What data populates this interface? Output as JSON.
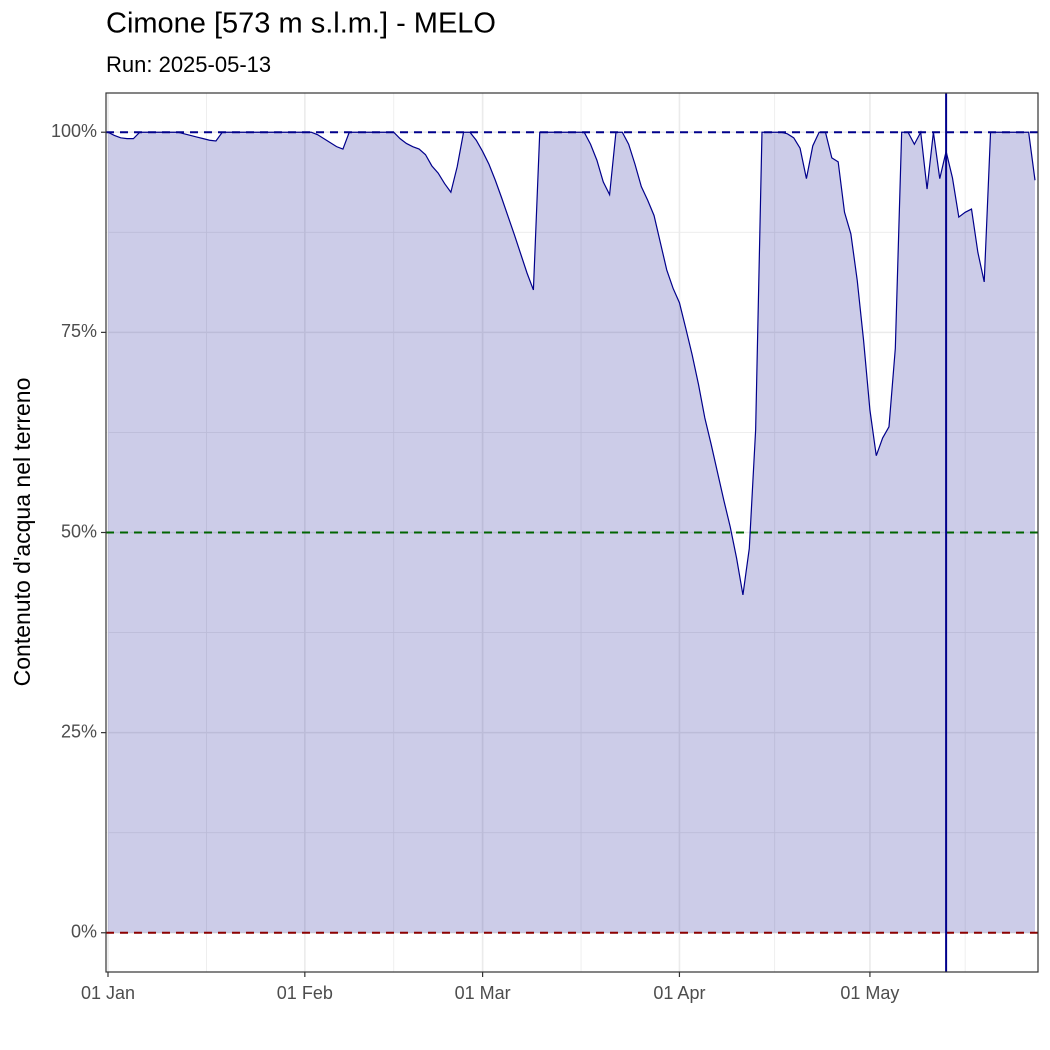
{
  "chart_data": {
    "type": "area",
    "title": "Cimone [573 m s.l.m.] - MELO",
    "subtitle": "Run: 2025-05-13",
    "y_label": "Contenuto d'acqua nel terreno",
    "x": [
      "01 Jan",
      "02 Jan",
      "03 Jan",
      "04 Jan",
      "05 Jan",
      "06 Jan",
      "07 Jan",
      "08 Jan",
      "09 Jan",
      "10 Jan",
      "11 Jan",
      "12 Jan",
      "13 Jan",
      "14 Jan",
      "15 Jan",
      "16 Jan",
      "17 Jan",
      "18 Jan",
      "19 Jan",
      "20 Jan",
      "21 Jan",
      "22 Jan",
      "23 Jan",
      "24 Jan",
      "25 Jan",
      "26 Jan",
      "27 Jan",
      "28 Jan",
      "29 Jan",
      "30 Jan",
      "31 Jan",
      "01 Feb",
      "02 Feb",
      "03 Feb",
      "04 Feb",
      "05 Feb",
      "06 Feb",
      "07 Feb",
      "08 Feb",
      "09 Feb",
      "10 Feb",
      "11 Feb",
      "12 Feb",
      "13 Feb",
      "14 Feb",
      "15 Feb",
      "16 Feb",
      "17 Feb",
      "18 Feb",
      "19 Feb",
      "20 Feb",
      "21 Feb",
      "22 Feb",
      "23 Feb",
      "24 Feb",
      "25 Feb",
      "26 Feb",
      "27 Feb",
      "28 Feb",
      "01 Mar",
      "02 Mar",
      "03 Mar",
      "04 Mar",
      "05 Mar",
      "06 Mar",
      "07 Mar",
      "08 Mar",
      "09 Mar",
      "10 Mar",
      "11 Mar",
      "12 Mar",
      "13 Mar",
      "14 Mar",
      "15 Mar",
      "16 Mar",
      "17 Mar",
      "18 Mar",
      "19 Mar",
      "20 Mar",
      "21 Mar",
      "22 Mar",
      "23 Mar",
      "24 Mar",
      "25 Mar",
      "26 Mar",
      "27 Mar",
      "28 Mar",
      "29 Mar",
      "30 Mar",
      "31 Mar",
      "01 Apr",
      "02 Apr",
      "03 Apr",
      "04 Apr",
      "05 Apr",
      "06 Apr",
      "07 Apr",
      "08 Apr",
      "09 Apr",
      "10 Apr",
      "11 Apr",
      "12 Apr",
      "13 Apr",
      "14 Apr",
      "15 Apr",
      "16 Apr",
      "17 Apr",
      "18 Apr",
      "19 Apr",
      "20 Apr",
      "21 Apr",
      "22 Apr",
      "23 Apr",
      "24 Apr",
      "25 Apr",
      "26 Apr",
      "27 Apr",
      "28 Apr",
      "29 Apr",
      "30 Apr",
      "01 May",
      "02 May",
      "03 May",
      "04 May",
      "05 May",
      "06 May",
      "07 May",
      "08 May",
      "09 May",
      "10 May",
      "11 May",
      "12 May",
      "13 May",
      "14 May",
      "15 May",
      "16 May",
      "17 May",
      "18 May",
      "19 May",
      "20 May",
      "21 May",
      "22 May",
      "23 May",
      "24 May",
      "25 May",
      "26 May",
      "27 May"
    ],
    "values": [
      100,
      99.6,
      99.3,
      99.2,
      99.2,
      100,
      100,
      100,
      100,
      100,
      100,
      100,
      99.8,
      99.6,
      99.4,
      99.2,
      99.0,
      98.9,
      100,
      100,
      100,
      100,
      100,
      100,
      100,
      100,
      100,
      100,
      100,
      100,
      100,
      100,
      100,
      99.7,
      99.2,
      98.7,
      98.2,
      97.9,
      100,
      100,
      100,
      100,
      100,
      100,
      100,
      100,
      99.2,
      98.6,
      98.2,
      97.9,
      97.2,
      95.8,
      94.9,
      93.6,
      92.5,
      95.7,
      100,
      100,
      99.0,
      97.6,
      96.0,
      94.0,
      91.8,
      89.5,
      87.2,
      84.8,
      82.4,
      80.3,
      100,
      100,
      100,
      100,
      100,
      100,
      100,
      100,
      98.5,
      96.5,
      93.8,
      92.2,
      100,
      100,
      98.5,
      96.0,
      93.2,
      91.5,
      89.6,
      86.2,
      82.8,
      80.5,
      78.7,
      75.5,
      72.2,
      68.5,
      64.3,
      61.0,
      57.5,
      54.0,
      50.7,
      46.8,
      42.2,
      48.0,
      62.8,
      100,
      100,
      100,
      100,
      99.8,
      99.3,
      98.0,
      94.2,
      98.3,
      100,
      100,
      96.8,
      96.3,
      90.0,
      87.3,
      81.5,
      74.0,
      65.3,
      59.6,
      61.8,
      63.2,
      73.0,
      100,
      100,
      98.5,
      100,
      92.9,
      100,
      94.2,
      97.6,
      94.3,
      89.4,
      90.0,
      90.4,
      85.0,
      81.3,
      100,
      100,
      100,
      100,
      100,
      100,
      100,
      94.0
    ],
    "color": "#00008b",
    "ylim": [
      -4.9,
      104.9
    ],
    "yticks": [
      {
        "value": 0,
        "label": "0%"
      },
      {
        "value": 25,
        "label": "25%"
      },
      {
        "value": 50,
        "label": "50%"
      },
      {
        "value": 75,
        "label": "75%"
      },
      {
        "value": 100,
        "label": "100%"
      }
    ],
    "xticks": [
      "01 Jan",
      "01 Feb",
      "01 Mar",
      "01 Apr",
      "01 May"
    ],
    "grid": true,
    "hlines": [
      {
        "value": 100,
        "color": "#00008b"
      },
      {
        "value": 50,
        "color": "#006400"
      },
      {
        "value": 0,
        "color": "#8b0000"
      }
    ],
    "vline": "13 May"
  }
}
